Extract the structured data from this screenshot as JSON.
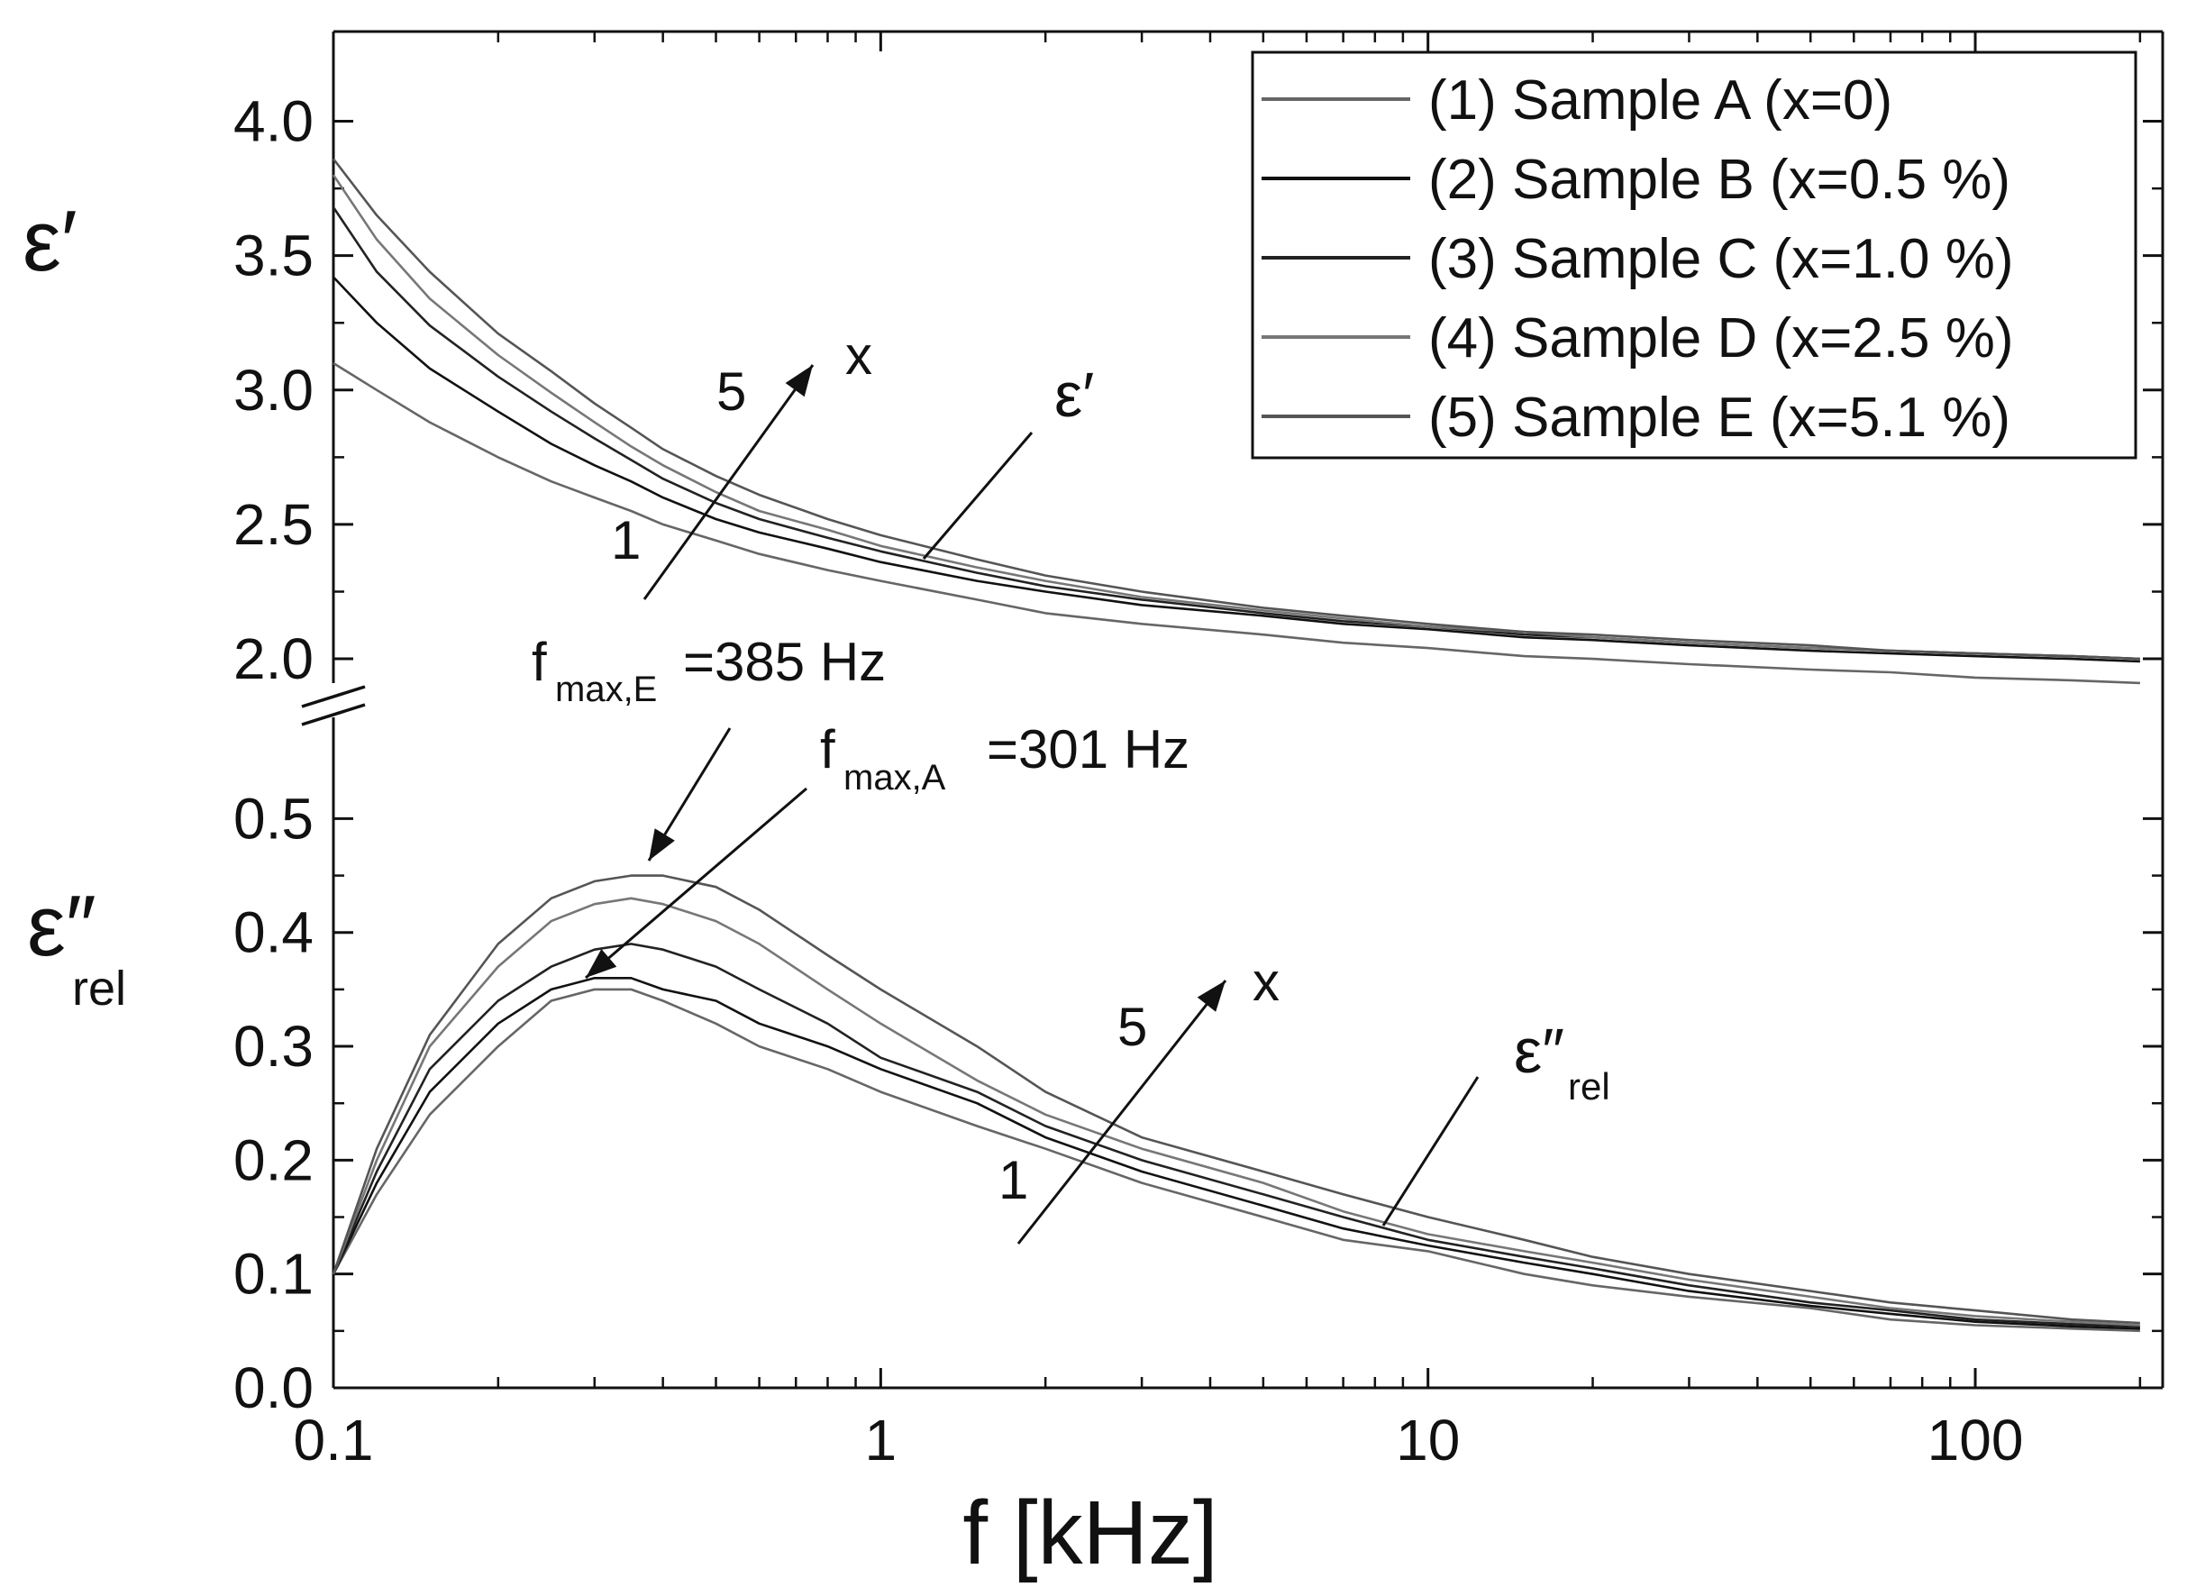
{
  "chart_data": {
    "type": "line",
    "xlabel": "f [kHz]",
    "x_scale": "log",
    "xlim": [
      0.1,
      220
    ],
    "x_ticks": [
      {
        "value": 0.1,
        "label": "0.1"
      },
      {
        "value": 1,
        "label": "1"
      },
      {
        "value": 10,
        "label": "10"
      },
      {
        "value": 100,
        "label": "100"
      }
    ],
    "x": [
      0.1,
      0.12,
      0.15,
      0.2,
      0.25,
      0.3,
      0.35,
      0.4,
      0.5,
      0.6,
      0.8,
      1,
      1.5,
      2,
      3,
      5,
      7,
      10,
      15,
      20,
      30,
      50,
      70,
      100,
      150,
      200
    ],
    "series_colors": [
      "#666666",
      "#111111",
      "#222222",
      "#777777",
      "#555555"
    ],
    "panels": [
      {
        "id": "upper",
        "ylabel": "ε′",
        "ylim": [
          1.97,
          4.25
        ],
        "y_ticks": [
          {
            "value": 2.0,
            "label": "2.0"
          },
          {
            "value": 2.5,
            "label": "2.5"
          },
          {
            "value": 3.0,
            "label": "3.0"
          },
          {
            "value": 3.5,
            "label": "3.5"
          },
          {
            "value": 4.0,
            "label": "4.0"
          }
        ],
        "series": [
          {
            "name": "(1) Sample A (x=0)",
            "values": [
              3.1,
              3.0,
              2.88,
              2.75,
              2.66,
              2.6,
              2.55,
              2.5,
              2.44,
              2.39,
              2.33,
              2.29,
              2.22,
              2.17,
              2.13,
              2.09,
              2.06,
              2.04,
              2.01,
              2.0,
              1.98,
              1.96,
              1.95,
              1.93,
              1.92,
              1.91
            ]
          },
          {
            "name": "(2) Sample B (x=0.5 %)",
            "values": [
              3.42,
              3.25,
              3.08,
              2.92,
              2.8,
              2.72,
              2.66,
              2.6,
              2.52,
              2.47,
              2.41,
              2.36,
              2.29,
              2.25,
              2.2,
              2.16,
              2.13,
              2.11,
              2.08,
              2.07,
              2.05,
              2.03,
              2.02,
              2.01,
              2.0,
              1.99
            ]
          },
          {
            "name": "(3) Sample C (x=1.0 %)",
            "values": [
              3.68,
              3.44,
              3.24,
              3.05,
              2.92,
              2.82,
              2.74,
              2.67,
              2.58,
              2.52,
              2.45,
              2.4,
              2.32,
              2.27,
              2.22,
              2.17,
              2.14,
              2.12,
              2.09,
              2.08,
              2.06,
              2.04,
              2.03,
              2.02,
              2.01,
              2.0
            ]
          },
          {
            "name": "(4) Sample D (x=2.5 %)",
            "values": [
              3.8,
              3.56,
              3.34,
              3.13,
              2.99,
              2.88,
              2.79,
              2.72,
              2.62,
              2.55,
              2.48,
              2.42,
              2.34,
              2.29,
              2.23,
              2.18,
              2.15,
              2.12,
              2.1,
              2.08,
              2.06,
              2.04,
              2.03,
              2.02,
              2.01,
              2.0
            ]
          },
          {
            "name": "(5) Sample E (x=5.1 %)",
            "values": [
              3.86,
              3.65,
              3.44,
              3.21,
              3.07,
              2.95,
              2.86,
              2.78,
              2.68,
              2.61,
              2.52,
              2.46,
              2.37,
              2.31,
              2.25,
              2.19,
              2.16,
              2.13,
              2.1,
              2.09,
              2.07,
              2.05,
              2.03,
              2.02,
              2.01,
              2.0
            ]
          }
        ]
      },
      {
        "id": "lower",
        "ylabel": "ε″rel",
        "ylim": [
          0.0,
          0.57
        ],
        "y_ticks": [
          {
            "value": 0.0,
            "label": "0.0"
          },
          {
            "value": 0.1,
            "label": "0.1"
          },
          {
            "value": 0.2,
            "label": "0.2"
          },
          {
            "value": 0.3,
            "label": "0.3"
          },
          {
            "value": 0.4,
            "label": "0.4"
          },
          {
            "value": 0.5,
            "label": "0.5"
          }
        ],
        "series": [
          {
            "name": "(1) Sample A (x=0)",
            "values": [
              0.1,
              0.17,
              0.24,
              0.3,
              0.34,
              0.35,
              0.35,
              0.34,
              0.32,
              0.3,
              0.28,
              0.26,
              0.23,
              0.21,
              0.18,
              0.15,
              0.13,
              0.12,
              0.1,
              0.09,
              0.08,
              0.07,
              0.06,
              0.055,
              0.052,
              0.05
            ]
          },
          {
            "name": "(2) Sample B (x=0.5 %)",
            "values": [
              0.1,
              0.18,
              0.26,
              0.32,
              0.35,
              0.36,
              0.36,
              0.35,
              0.34,
              0.32,
              0.3,
              0.28,
              0.25,
              0.22,
              0.19,
              0.16,
              0.14,
              0.125,
              0.11,
              0.1,
              0.085,
              0.072,
              0.065,
              0.058,
              0.054,
              0.052
            ]
          },
          {
            "name": "(3) Sample C (x=1.0 %)",
            "values": [
              0.1,
              0.19,
              0.28,
              0.34,
              0.37,
              0.385,
              0.39,
              0.385,
              0.37,
              0.35,
              0.32,
              0.29,
              0.26,
              0.23,
              0.2,
              0.17,
              0.15,
              0.13,
              0.115,
              0.105,
              0.09,
              0.075,
              0.068,
              0.06,
              0.056,
              0.054
            ]
          },
          {
            "name": "(4) Sample D (x=2.5 %)",
            "values": [
              0.1,
              0.2,
              0.3,
              0.37,
              0.41,
              0.425,
              0.43,
              0.425,
              0.41,
              0.39,
              0.35,
              0.32,
              0.27,
              0.24,
              0.21,
              0.18,
              0.155,
              0.135,
              0.12,
              0.11,
              0.095,
              0.08,
              0.07,
              0.063,
              0.058,
              0.055
            ]
          },
          {
            "name": "(5) Sample E (x=5.1 %)",
            "values": [
              0.1,
              0.21,
              0.31,
              0.39,
              0.43,
              0.445,
              0.45,
              0.45,
              0.44,
              0.42,
              0.38,
              0.35,
              0.3,
              0.26,
              0.22,
              0.19,
              0.17,
              0.15,
              0.13,
              0.115,
              0.1,
              0.085,
              0.075,
              0.068,
              0.06,
              0.057
            ]
          }
        ]
      }
    ],
    "annotations": {
      "upper_label": "ε′",
      "lower_label_main": "ε″",
      "lower_label_sub": "rel",
      "label_x": "x",
      "label_5": "5",
      "label_1": "1",
      "fmax_E_prefix": "f",
      "fmax_E_sub": "max,E",
      "fmax_E_value": "=385 Hz",
      "fmax_A_prefix": "f",
      "fmax_A_sub": "max,A",
      "fmax_A_value": "=301 Hz"
    }
  }
}
